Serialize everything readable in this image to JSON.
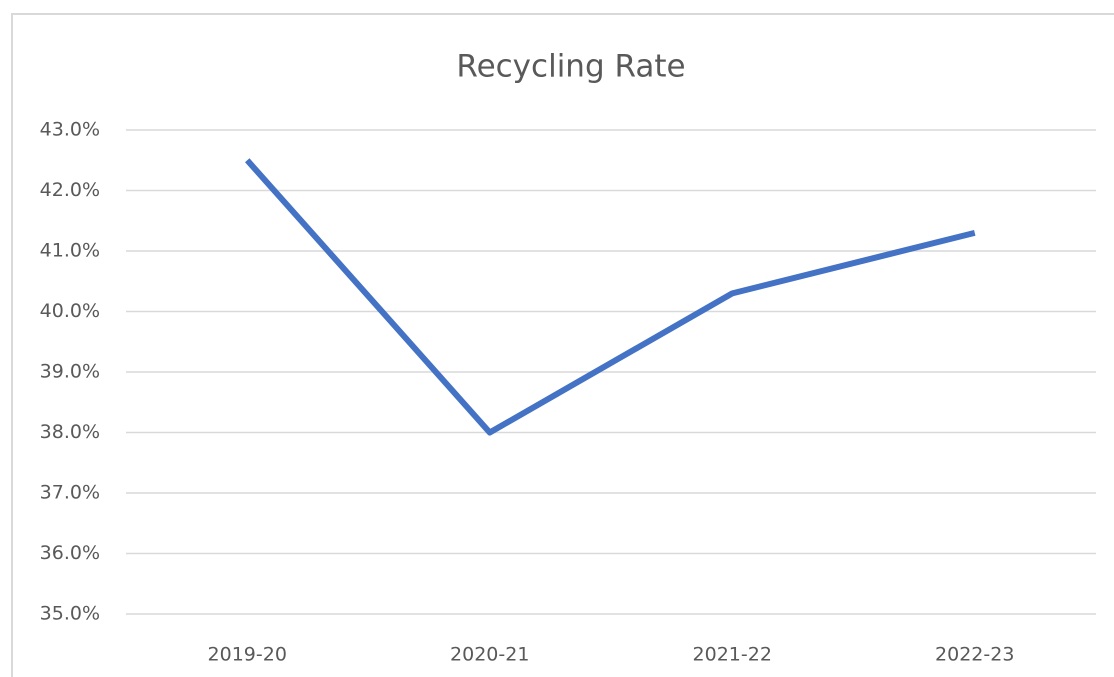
{
  "chart_data": {
    "type": "line",
    "title": "Recycling Rate",
    "categories": [
      "2019-20",
      "2020-21",
      "2021-22",
      "2022-23"
    ],
    "series": [
      {
        "name": "Recycling Rate",
        "color": "#4472c4",
        "values": [
          42.5,
          38.0,
          40.3,
          41.3
        ]
      }
    ],
    "ylim": [
      35,
      43
    ],
    "yticks": [
      {
        "value": 35,
        "label": "35.0%"
      },
      {
        "value": 36,
        "label": "36.0%"
      },
      {
        "value": 37,
        "label": "37.0%"
      },
      {
        "value": 38,
        "label": "38.0%"
      },
      {
        "value": 39,
        "label": "39.0%"
      },
      {
        "value": 40,
        "label": "40.0%"
      },
      {
        "value": 41,
        "label": "41.0%"
      },
      {
        "value": 42,
        "label": "42.0%"
      },
      {
        "value": 43,
        "label": "43.0%"
      }
    ],
    "grid": true
  }
}
